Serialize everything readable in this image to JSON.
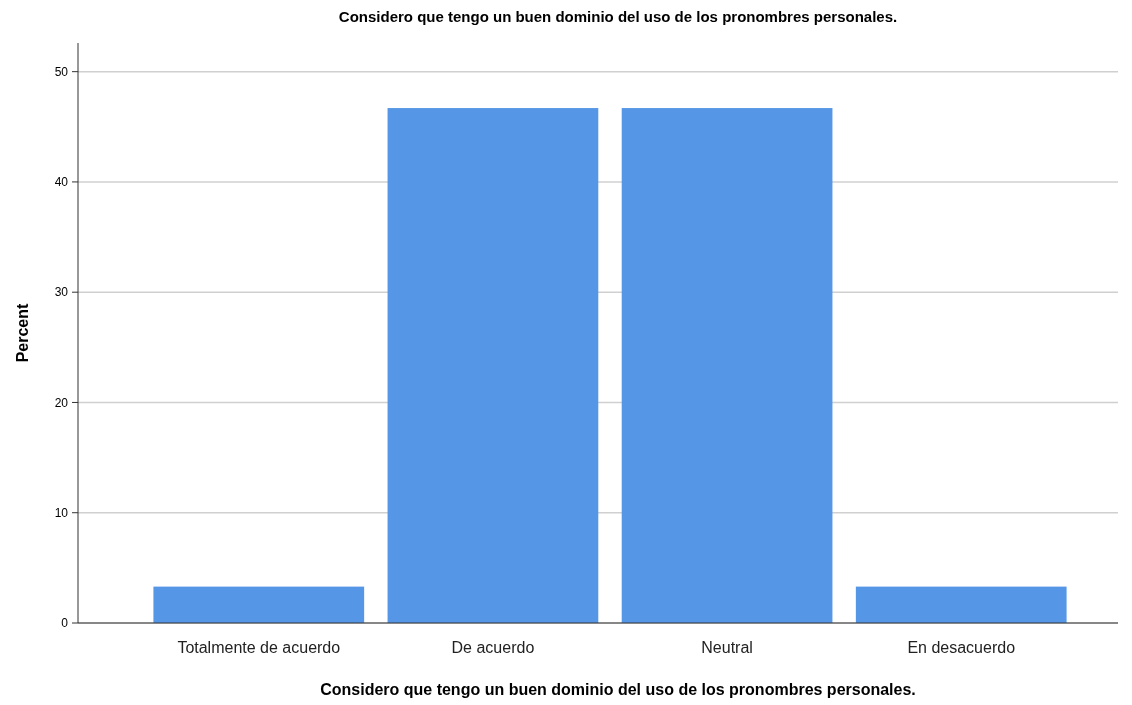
{
  "chart_data": {
    "type": "bar",
    "title": "Considero que tengo un buen dominio del uso de los pronombres personales.",
    "xlabel": "Considero que tengo un buen dominio del uso de los pronombres personales.",
    "ylabel": "Percent",
    "categories": [
      "Totalmente de acuerdo",
      "De acuerdo",
      "Neutral",
      "En desacuerdo"
    ],
    "values": [
      3.3,
      46.7,
      46.7,
      3.3
    ],
    "color": "#5596e6",
    "ylim": [
      0,
      52.6
    ],
    "yticks": [
      0,
      10,
      20,
      30,
      40,
      50
    ],
    "grid": "y"
  }
}
